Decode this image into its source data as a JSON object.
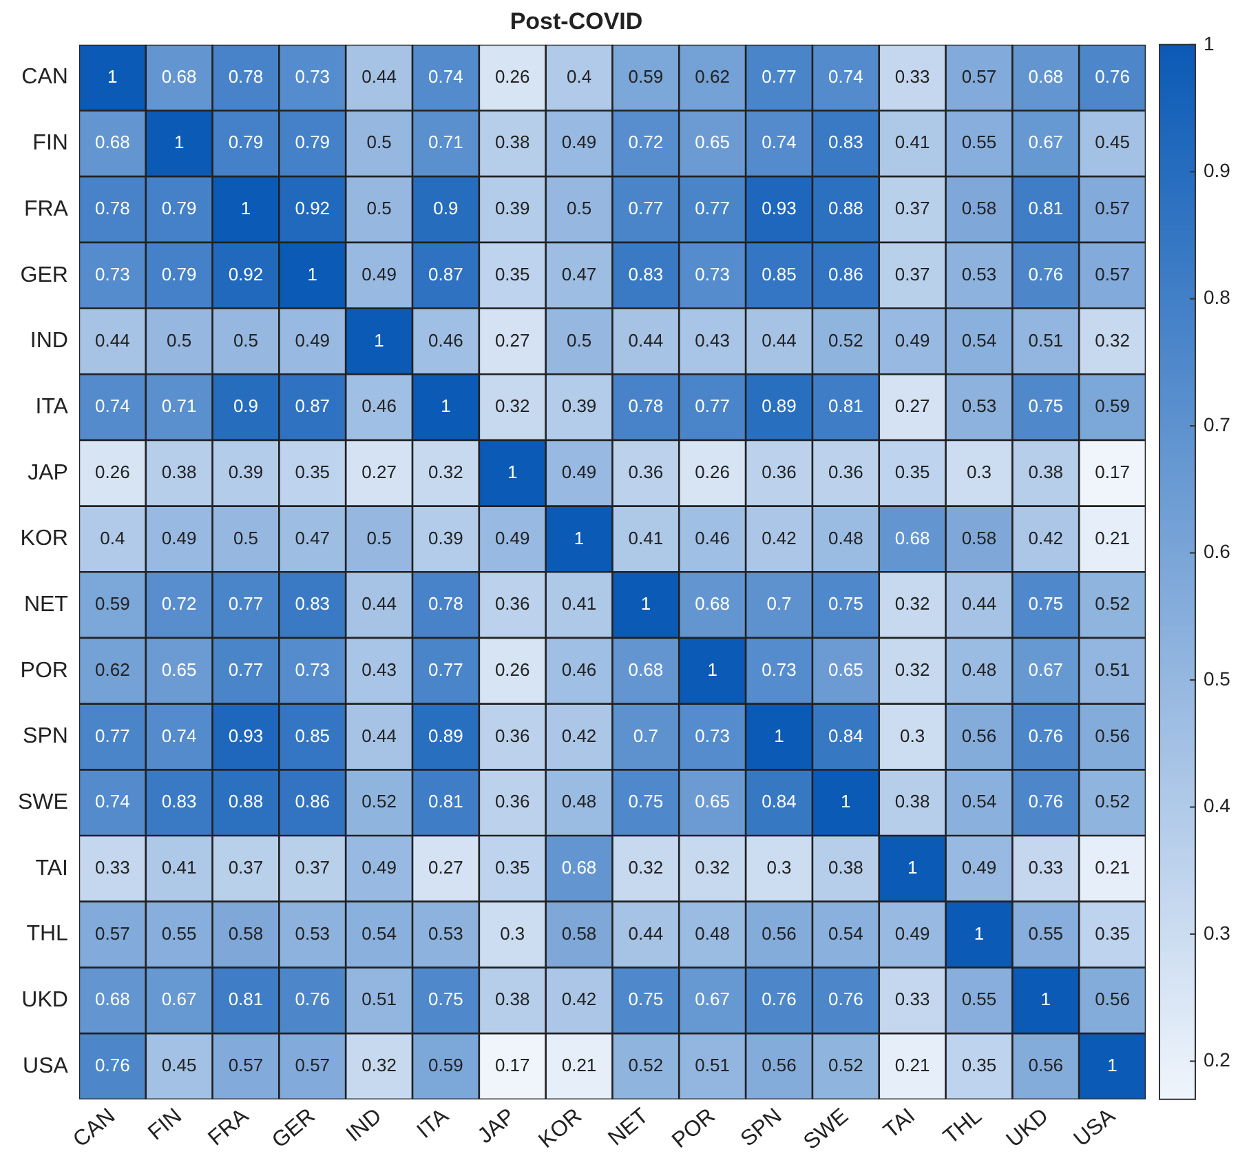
{
  "chart_data": {
    "type": "heatmap",
    "title": "Post-COVID",
    "categories": [
      "CAN",
      "FIN",
      "FRA",
      "GER",
      "IND",
      "ITA",
      "JAP",
      "KOR",
      "NET",
      "POR",
      "SPN",
      "SWE",
      "TAI",
      "THL",
      "UKD",
      "USA"
    ],
    "y_categories": [
      "CAN",
      "FIN",
      "FRA",
      "GER",
      "IND",
      "ITA",
      "JAP",
      "KOR",
      "NET",
      "POR",
      "SPN",
      "SWE",
      "TAI",
      "THL",
      "UKD",
      "USA"
    ],
    "cells": [
      [
        1,
        0.68,
        0.78,
        0.73,
        0.44,
        0.74,
        0.26,
        0.4,
        0.59,
        0.62,
        0.77,
        0.74,
        0.33,
        0.57,
        0.68,
        0.76
      ],
      [
        0.68,
        1,
        0.79,
        0.79,
        0.5,
        0.71,
        0.38,
        0.49,
        0.72,
        0.65,
        0.74,
        0.83,
        0.41,
        0.55,
        0.67,
        0.45
      ],
      [
        0.78,
        0.79,
        1,
        0.92,
        0.5,
        0.9,
        0.39,
        0.5,
        0.77,
        0.77,
        0.93,
        0.88,
        0.37,
        0.58,
        0.81,
        0.57
      ],
      [
        0.73,
        0.79,
        0.92,
        1,
        0.49,
        0.87,
        0.35,
        0.47,
        0.83,
        0.73,
        0.85,
        0.86,
        0.37,
        0.53,
        0.76,
        0.57
      ],
      [
        0.44,
        0.5,
        0.5,
        0.49,
        1,
        0.46,
        0.27,
        0.5,
        0.44,
        0.43,
        0.44,
        0.52,
        0.49,
        0.54,
        0.51,
        0.32
      ],
      [
        0.74,
        0.71,
        0.9,
        0.87,
        0.46,
        1,
        0.32,
        0.39,
        0.78,
        0.77,
        0.89,
        0.81,
        0.27,
        0.53,
        0.75,
        0.59
      ],
      [
        0.26,
        0.38,
        0.39,
        0.35,
        0.27,
        0.32,
        1,
        0.49,
        0.36,
        0.26,
        0.36,
        0.36,
        0.35,
        0.3,
        0.38,
        0.17
      ],
      [
        0.4,
        0.49,
        0.5,
        0.47,
        0.5,
        0.39,
        0.49,
        1,
        0.41,
        0.46,
        0.42,
        0.48,
        0.68,
        0.58,
        0.42,
        0.21
      ],
      [
        0.59,
        0.72,
        0.77,
        0.83,
        0.44,
        0.78,
        0.36,
        0.41,
        1,
        0.68,
        0.7,
        0.75,
        0.32,
        0.44,
        0.75,
        0.52
      ],
      [
        0.62,
        0.65,
        0.77,
        0.73,
        0.43,
        0.77,
        0.26,
        0.46,
        0.68,
        1,
        0.73,
        0.65,
        0.32,
        0.48,
        0.67,
        0.51
      ],
      [
        0.77,
        0.74,
        0.93,
        0.85,
        0.44,
        0.89,
        0.36,
        0.42,
        0.7,
        0.73,
        1,
        0.84,
        0.3,
        0.56,
        0.76,
        0.56
      ],
      [
        0.74,
        0.83,
        0.88,
        0.86,
        0.52,
        0.81,
        0.36,
        0.48,
        0.75,
        0.65,
        0.84,
        1,
        0.38,
        0.54,
        0.76,
        0.52
      ],
      [
        0.33,
        0.41,
        0.37,
        0.37,
        0.49,
        0.27,
        0.35,
        0.68,
        0.32,
        0.32,
        0.3,
        0.38,
        1,
        0.49,
        0.33,
        0.21
      ],
      [
        0.57,
        0.55,
        0.58,
        0.53,
        0.54,
        0.53,
        0.3,
        0.58,
        0.44,
        0.48,
        0.56,
        0.54,
        0.49,
        1,
        0.55,
        0.35
      ],
      [
        0.68,
        0.67,
        0.81,
        0.76,
        0.51,
        0.75,
        0.38,
        0.42,
        0.75,
        0.67,
        0.76,
        0.76,
        0.33,
        0.55,
        1,
        0.56
      ],
      [
        0.76,
        0.45,
        0.57,
        0.57,
        0.32,
        0.59,
        0.17,
        0.21,
        0.52,
        0.51,
        0.56,
        0.52,
        0.21,
        0.35,
        0.56,
        1
      ]
    ],
    "clim": [
      0.17,
      1
    ],
    "cticks": [
      0.2,
      0.3,
      0.4,
      0.5,
      0.6,
      0.7,
      0.8,
      0.9,
      1
    ],
    "data_labels": true,
    "legend": false,
    "grid": false
  }
}
